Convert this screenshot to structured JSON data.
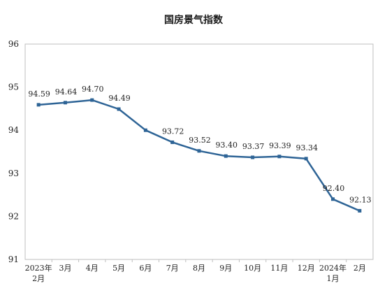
{
  "chart_data": {
    "type": "line",
    "title": "国房景气指数",
    "xlabel": "",
    "ylabel": "",
    "categories": [
      [
        "2023年",
        "2月"
      ],
      [
        "3月"
      ],
      [
        "4月"
      ],
      [
        "5月"
      ],
      [
        "6月"
      ],
      [
        "7月"
      ],
      [
        "8月"
      ],
      [
        "9月"
      ],
      [
        "10月"
      ],
      [
        "11月"
      ],
      [
        "12月"
      ],
      [
        "2024年",
        "1月"
      ],
      [
        "2月"
      ]
    ],
    "series": [
      {
        "values": [
          94.59,
          94.64,
          94.7,
          94.49,
          94.0,
          93.72,
          93.52,
          93.4,
          93.37,
          93.39,
          93.34,
          92.4,
          92.13
        ],
        "labels": [
          "94.59",
          "94.64",
          "94.70",
          "94.49",
          "",
          "93.72",
          "93.52",
          "93.40",
          "93.37",
          "93.39",
          "93.34",
          "92.40",
          "92.13"
        ]
      }
    ],
    "ylim": [
      91,
      96
    ],
    "yticks": [
      91,
      92,
      93,
      94,
      95,
      96
    ],
    "grid": false,
    "legend": "none",
    "line_color": "#2e6496"
  }
}
